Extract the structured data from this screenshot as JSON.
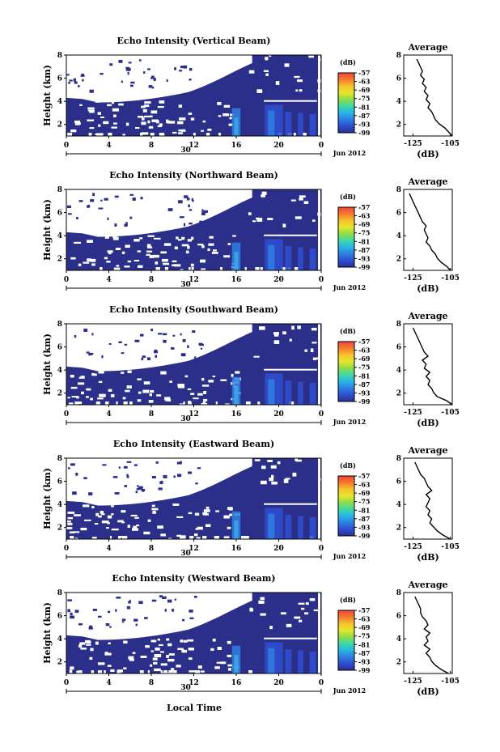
{
  "figure": {
    "xlabel": "Local Time",
    "date_label": "Jun 2012",
    "day_label": "30",
    "colorbar_unit": "(dB)",
    "colorbar_ticks": [
      "-57",
      "-63",
      "-69",
      "-75",
      "-81",
      "-87",
      "-93",
      "-99"
    ],
    "colorbar_colors": [
      "#f2443a",
      "#f57a2e",
      "#f7c229",
      "#e6e62e",
      "#8fdc48",
      "#3fd9a8",
      "#27b4e6",
      "#2d7fe0",
      "#2f4fd0",
      "#2b2f90"
    ],
    "background_color": "#2b2f8a",
    "no_data_color": "#ffffff"
  },
  "chart_data": [
    {
      "type": "heatmap",
      "title": "Echo Intensity (Vertical Beam)",
      "ylabel": "Height (km)",
      "xlim": [
        0,
        24
      ],
      "ylim": [
        1,
        8
      ],
      "x_ticks": [
        "0",
        "4",
        "8",
        "12",
        "16",
        "20",
        "0"
      ],
      "y_ticks": [
        "2",
        "4",
        "6",
        "8"
      ],
      "colorbar_range": [
        -99,
        -57
      ],
      "average_profile": {
        "title": "Average",
        "xlabel": "(dB)",
        "x_ticks": [
          "-125",
          "-105"
        ],
        "y_ticks": [
          "2",
          "4",
          "6",
          "8"
        ],
        "xlim": [
          -130,
          -104
        ],
        "ylim": [
          1,
          8
        ],
        "x": [
          -104,
          -106,
          -108,
          -111,
          -113,
          -114,
          -115,
          -117,
          -116,
          -118,
          -117,
          -119,
          -118,
          -120,
          -119,
          -121,
          -120,
          -121,
          -122,
          -123
        ],
        "y": [
          1.0,
          1.35,
          1.7,
          2.05,
          2.4,
          2.75,
          3.1,
          3.45,
          3.8,
          4.15,
          4.5,
          4.85,
          5.2,
          5.55,
          5.9,
          6.25,
          6.6,
          6.95,
          7.3,
          7.65
        ]
      }
    },
    {
      "type": "heatmap",
      "title": "Echo Intensity (Northward Beam)",
      "ylabel": "Height (km)",
      "xlim": [
        0,
        24
      ],
      "ylim": [
        1,
        8
      ],
      "x_ticks": [
        "0",
        "4",
        "8",
        "12",
        "16",
        "20",
        "0"
      ],
      "y_ticks": [
        "2",
        "4",
        "6",
        "8"
      ],
      "colorbar_range": [
        -99,
        -57
      ],
      "average_profile": {
        "title": "Average",
        "xlabel": "(dB)",
        "x_ticks": [
          "-125",
          "-105"
        ],
        "y_ticks": [
          "2",
          "4",
          "6",
          "8"
        ],
        "xlim": [
          -130,
          -104
        ],
        "ylim": [
          1,
          8
        ],
        "x": [
          -105,
          -107,
          -110,
          -112,
          -113,
          -115,
          -116,
          -118,
          -117,
          -118,
          -119,
          -118,
          -120,
          -121,
          -122,
          -123,
          -124,
          -125,
          -126,
          -127
        ],
        "y": [
          1.0,
          1.35,
          1.7,
          2.05,
          2.4,
          2.75,
          3.1,
          3.45,
          3.8,
          4.15,
          4.5,
          4.85,
          5.2,
          5.55,
          5.9,
          6.25,
          6.6,
          6.95,
          7.3,
          7.65
        ]
      }
    },
    {
      "type": "heatmap",
      "title": "Echo Intensity (Southward Beam)",
      "ylabel": "Height (km)",
      "xlim": [
        0,
        24
      ],
      "ylim": [
        1,
        8
      ],
      "x_ticks": [
        "0",
        "4",
        "8",
        "12",
        "16",
        "20",
        "0"
      ],
      "y_ticks": [
        "2",
        "4",
        "6",
        "8"
      ],
      "colorbar_range": [
        -99,
        -57
      ],
      "average_profile": {
        "title": "Average",
        "xlabel": "(dB)",
        "x_ticks": [
          "-125",
          "-105"
        ],
        "y_ticks": [
          "2",
          "4",
          "6",
          "8"
        ],
        "xlim": [
          -130,
          -104
        ],
        "ylim": [
          1,
          8
        ],
        "x": [
          -104,
          -107,
          -112,
          -114,
          -115,
          -117,
          -116,
          -118,
          -116,
          -119,
          -118,
          -120,
          -117,
          -119,
          -120,
          -121,
          -122,
          -123,
          -124,
          -125
        ],
        "y": [
          1.0,
          1.35,
          1.7,
          2.05,
          2.4,
          2.75,
          3.1,
          3.45,
          3.8,
          4.15,
          4.5,
          4.85,
          5.2,
          5.55,
          5.9,
          6.25,
          6.6,
          6.95,
          7.3,
          7.65
        ]
      }
    },
    {
      "type": "heatmap",
      "title": "Echo Intensity (Eastward Beam)",
      "ylabel": "Height (km)",
      "xlim": [
        0,
        24
      ],
      "ylim": [
        1,
        8
      ],
      "x_ticks": [
        "0",
        "4",
        "8",
        "12",
        "16",
        "20",
        "0"
      ],
      "y_ticks": [
        "2",
        "4",
        "6",
        "8"
      ],
      "colorbar_range": [
        -99,
        -57
      ],
      "average_profile": {
        "title": "Average",
        "xlabel": "(dB)",
        "x_ticks": [
          "-125",
          "-105"
        ],
        "y_ticks": [
          "2",
          "4",
          "6",
          "8"
        ],
        "xlim": [
          -130,
          -104
        ],
        "ylim": [
          1,
          8
        ],
        "x": [
          -105,
          -109,
          -112,
          -114,
          -116,
          -115,
          -117,
          -116,
          -118,
          -117,
          -116,
          -118,
          -115,
          -117,
          -118,
          -119,
          -121,
          -122,
          -123,
          -124
        ],
        "y": [
          1.0,
          1.35,
          1.7,
          2.05,
          2.4,
          2.75,
          3.1,
          3.45,
          3.8,
          4.15,
          4.5,
          4.85,
          5.2,
          5.55,
          5.9,
          6.25,
          6.6,
          6.95,
          7.3,
          7.65
        ]
      }
    },
    {
      "type": "heatmap",
      "title": "Echo Intensity (Westward Beam)",
      "ylabel": "Height (km)",
      "xlim": [
        0,
        24
      ],
      "ylim": [
        1,
        8
      ],
      "x_ticks": [
        "0",
        "4",
        "8",
        "12",
        "16",
        "20",
        "0"
      ],
      "y_ticks": [
        "2",
        "4",
        "6",
        "8"
      ],
      "colorbar_range": [
        -99,
        -57
      ],
      "average_profile": {
        "title": "Average",
        "xlabel": "(dB)",
        "x_ticks": [
          "-125",
          "-105"
        ],
        "y_ticks": [
          "2",
          "4",
          "6",
          "8"
        ],
        "xlim": [
          -130,
          -104
        ],
        "ylim": [
          1,
          8
        ],
        "x": [
          -106,
          -110,
          -113,
          -115,
          -116,
          -118,
          -116,
          -119,
          -117,
          -118,
          -116,
          -119,
          -117,
          -118,
          -120,
          -121,
          -121,
          -122,
          -123,
          -124
        ],
        "y": [
          1.0,
          1.35,
          1.7,
          2.05,
          2.4,
          2.75,
          3.1,
          3.45,
          3.8,
          4.15,
          4.5,
          4.85,
          5.2,
          5.55,
          5.9,
          6.25,
          6.6,
          6.95,
          7.3,
          7.65
        ]
      }
    }
  ]
}
